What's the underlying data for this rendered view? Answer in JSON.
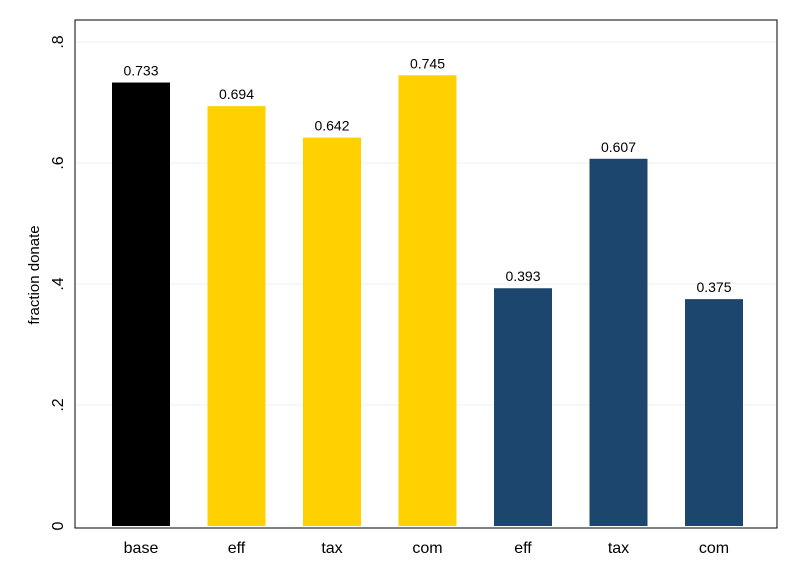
{
  "chart_data": {
    "type": "bar",
    "title": "",
    "xlabel": "",
    "ylabel": "fraction donate",
    "ylim": [
      0,
      0.8
    ],
    "yticks": [
      0,
      0.2,
      0.4,
      0.6,
      0.8
    ],
    "ytick_labels": [
      "0",
      ".2",
      ".4",
      ".6",
      ".8"
    ],
    "grid": true,
    "categories": [
      "base",
      "eff",
      "tax",
      "com",
      "eff",
      "tax",
      "com"
    ],
    "values": [
      0.733,
      0.694,
      0.642,
      0.745,
      0.393,
      0.607,
      0.375
    ],
    "value_labels": [
      "0.733",
      "0.694",
      "0.642",
      "0.745",
      "0.393",
      "0.607",
      "0.375"
    ],
    "bar_colors": [
      "#000000",
      "#FFD100",
      "#FFD100",
      "#FFD100",
      "#1C466D",
      "#1C466D",
      "#1C466D"
    ]
  }
}
